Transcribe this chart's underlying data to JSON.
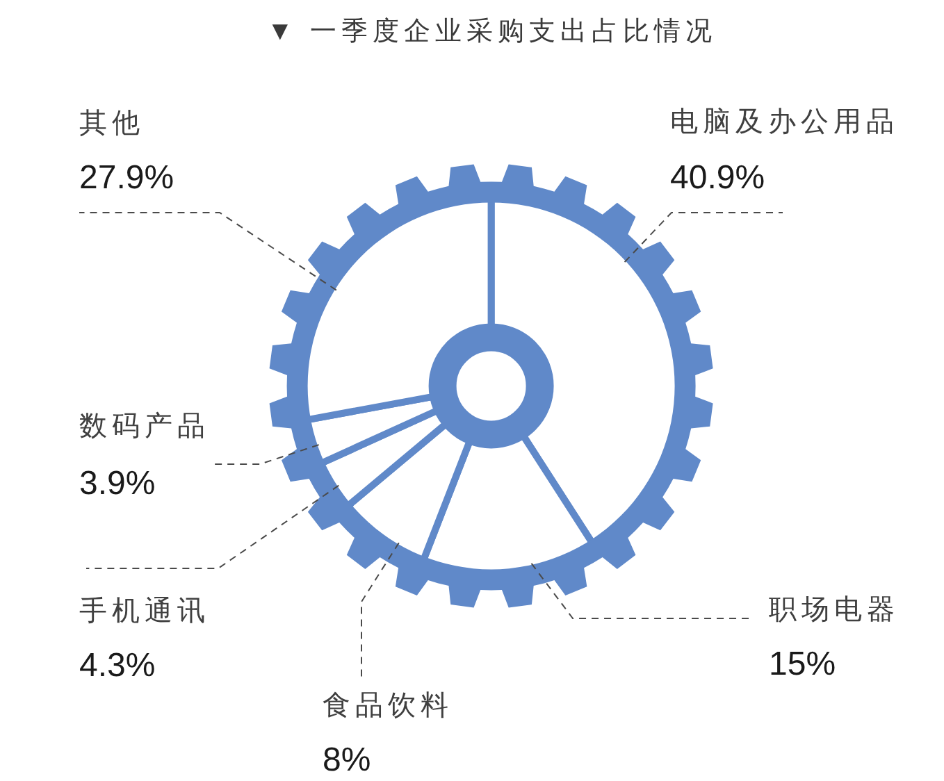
{
  "chart_data": {
    "type": "donut",
    "title": "▼ 一季度企业采购支出占比情况",
    "categories": [
      "电脑及办公用品",
      "职场电器",
      "食品饮料",
      "手机通讯",
      "数码产品",
      "其他"
    ],
    "values": [
      40.9,
      15,
      8,
      4.3,
      3.9,
      27.9
    ],
    "colors": [
      "#ffffff",
      "#ffffff",
      "#ffffff",
      "#ffffff",
      "#ffffff",
      "#ffffff"
    ],
    "value_labels": [
      "40.9%",
      "15%",
      "8%",
      "4.3%",
      "3.9%",
      "27.9%"
    ]
  }
}
